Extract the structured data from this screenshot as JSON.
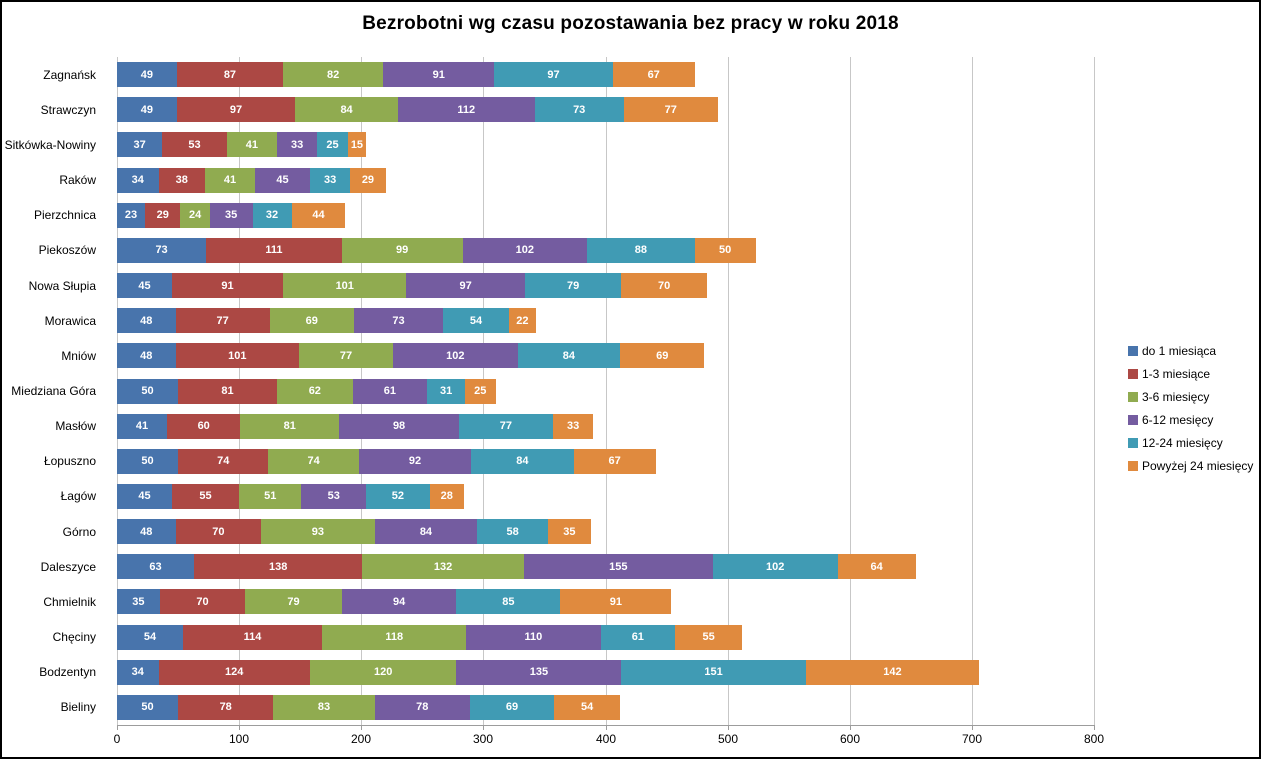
{
  "chart_data": {
    "type": "bar",
    "stacked": true,
    "orientation": "horizontal",
    "title": "Bezrobotni wg czasu pozostawania bez pracy w roku 2018",
    "xlabel": "",
    "ylabel": "",
    "xlim": [
      0,
      800
    ],
    "x_ticks": [
      0,
      100,
      200,
      300,
      400,
      500,
      600,
      700,
      800
    ],
    "grid": true,
    "legend_position": "right",
    "value_labels": "inside-white-bold",
    "categories": [
      "Zagnańsk",
      "Strawczyn",
      "Sitkówka-Nowiny",
      "Raków",
      "Pierzchnica",
      "Piekoszów",
      "Nowa Słupia",
      "Morawica",
      "Mniów",
      "Miedziana Góra",
      "Masłów",
      "Łopuszno",
      "Łagów",
      "Górno",
      "Daleszyce",
      "Chmielnik",
      "Chęciny",
      "Bodzentyn",
      "Bieliny"
    ],
    "series": [
      {
        "name": "do 1 miesiąca",
        "color": "#4874AC",
        "values": [
          49,
          49,
          37,
          34,
          23,
          73,
          45,
          48,
          48,
          50,
          41,
          50,
          45,
          48,
          63,
          35,
          54,
          34,
          50
        ]
      },
      {
        "name": "1-3 miesiące",
        "color": "#AC4844",
        "values": [
          87,
          97,
          53,
          38,
          29,
          111,
          91,
          77,
          101,
          81,
          60,
          74,
          55,
          70,
          138,
          70,
          114,
          124,
          78
        ]
      },
      {
        "name": "3-6 miesięcy",
        "color": "#90AB50",
        "values": [
          82,
          84,
          41,
          41,
          24,
          99,
          101,
          69,
          77,
          62,
          81,
          74,
          51,
          93,
          132,
          79,
          118,
          120,
          83
        ]
      },
      {
        "name": "6-12 mesięcy",
        "color": "#745CA0",
        "values": [
          91,
          112,
          33,
          45,
          35,
          102,
          97,
          73,
          102,
          61,
          98,
          92,
          53,
          84,
          155,
          94,
          110,
          135,
          78
        ]
      },
      {
        "name": "12-24 miesięcy",
        "color": "#409BB4",
        "values": [
          97,
          73,
          25,
          33,
          32,
          88,
          79,
          54,
          84,
          31,
          77,
          84,
          52,
          58,
          102,
          85,
          61,
          151,
          69
        ]
      },
      {
        "name": "Powyżej 24 miesięcy",
        "color": "#E08A3E",
        "values": [
          67,
          77,
          15,
          29,
          44,
          50,
          70,
          22,
          69,
          25,
          33,
          67,
          28,
          35,
          64,
          91,
          55,
          142,
          54
        ]
      }
    ],
    "colors": {
      "gridline": "#c7c7c7",
      "axis_line": "#9c9c9c",
      "value_label_text": "#ffffff",
      "text": "#000000",
      "background": "#ffffff"
    }
  }
}
